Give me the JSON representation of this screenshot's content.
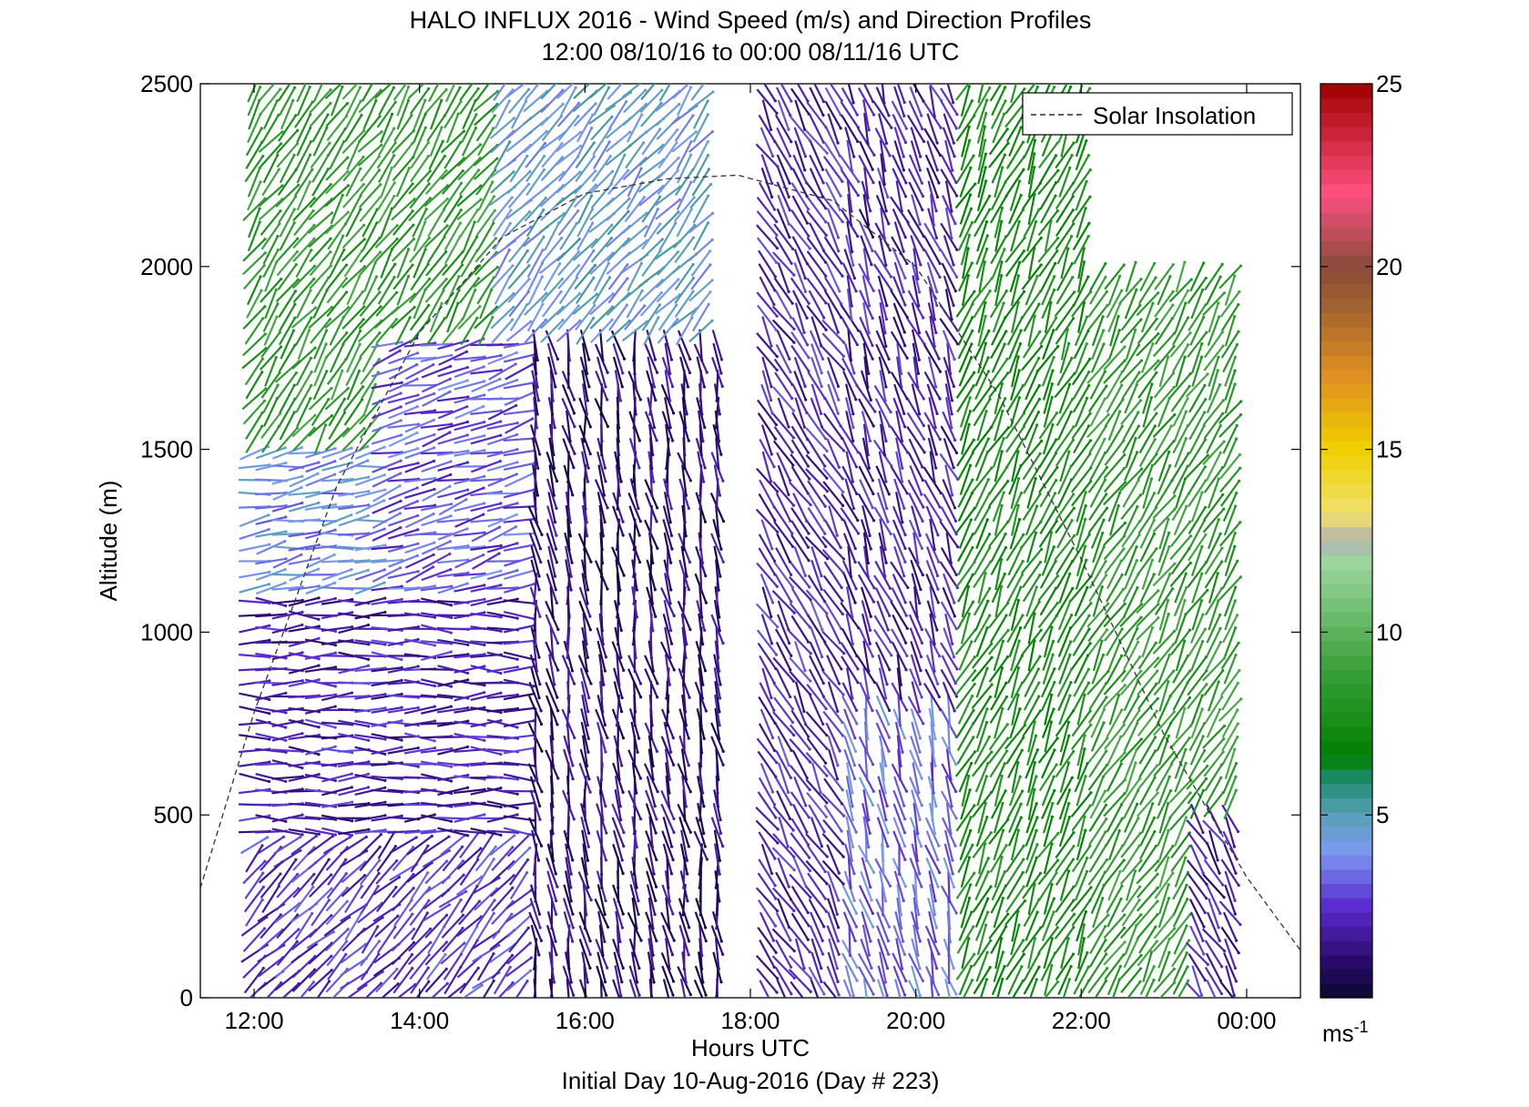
{
  "chart_data": {
    "type": "wind-barb-profile",
    "title": "HALO INFLUX 2016 - Wind Speed (m/s) and Direction Profiles",
    "subtitle": "12:00 08/10/16 to 00:00 08/11/16  UTC",
    "xlabel": "Hours UTC",
    "xlabel2": "Initial Day 10-Aug-2016 (Day # 223)",
    "ylabel": "Altitude (m)",
    "x_ticks": [
      "12:00",
      "14:00",
      "16:00",
      "18:00",
      "20:00",
      "22:00",
      "00:00"
    ],
    "x_tick_hours": [
      12,
      14,
      16,
      18,
      20,
      22,
      24
    ],
    "xlim_hours": [
      11.35,
      24.65
    ],
    "y_ticks": [
      "0",
      "500",
      "1000",
      "1500",
      "2000",
      "2500"
    ],
    "y_tick_values": [
      0,
      500,
      1000,
      1500,
      2000,
      2500
    ],
    "ylim": [
      0,
      2500
    ],
    "legend": {
      "entries": [
        "Solar Insolation"
      ],
      "location": "top-right"
    },
    "colorbar": {
      "ticks": [
        "5",
        "10",
        "15",
        "20",
        "25"
      ],
      "tick_values": [
        5,
        10,
        15,
        20,
        25
      ],
      "range": [
        0,
        25
      ],
      "unit": "ms",
      "unit_exp": "-1",
      "colors": [
        {
          "v": 0,
          "c": "#0a0a30"
        },
        {
          "v": 1,
          "c": "#2a0a6a"
        },
        {
          "v": 2.5,
          "c": "#5a2ad0"
        },
        {
          "v": 4,
          "c": "#7a9af0"
        },
        {
          "v": 5,
          "c": "#5aa0b8"
        },
        {
          "v": 6,
          "c": "#1a8a6a"
        },
        {
          "v": 6.6,
          "c": "#008000"
        },
        {
          "v": 9,
          "c": "#3aa03a"
        },
        {
          "v": 12,
          "c": "#a0d8a0"
        },
        {
          "v": 12.5,
          "c": "#b0b0b0"
        },
        {
          "v": 13.2,
          "c": "#f0e070"
        },
        {
          "v": 15,
          "c": "#f0d000"
        },
        {
          "v": 17,
          "c": "#e09020"
        },
        {
          "v": 19,
          "c": "#a06030"
        },
        {
          "v": 20,
          "c": "#8a4a3a"
        },
        {
          "v": 22,
          "c": "#ff5080"
        },
        {
          "v": 25,
          "c": "#a00000"
        }
      ]
    },
    "solar_insolation": {
      "description_curve": "dashed",
      "peak_hour": 17.85,
      "peak_altitude": 2250,
      "points": [
        {
          "h": 11.35,
          "alt": 300
        },
        {
          "h": 12,
          "alt": 780
        },
        {
          "h": 13,
          "alt": 1400
        },
        {
          "h": 14,
          "alt": 1820
        },
        {
          "h": 15,
          "alt": 2080
        },
        {
          "h": 16,
          "alt": 2200
        },
        {
          "h": 17,
          "alt": 2240
        },
        {
          "h": 17.85,
          "alt": 2250
        },
        {
          "h": 19,
          "alt": 2180
        },
        {
          "h": 20,
          "alt": 2000
        },
        {
          "h": 21,
          "alt": 1650
        },
        {
          "h": 22,
          "alt": 1200
        },
        {
          "h": 23,
          "alt": 720
        },
        {
          "h": 24,
          "alt": 330
        },
        {
          "h": 24.65,
          "alt": 130
        }
      ]
    },
    "wind_regions": [
      {
        "h0": 12.0,
        "h1": 14.8,
        "a0": 1500,
        "a1": 2500,
        "speed": 8.5,
        "dir_deg": 35
      },
      {
        "h0": 14.8,
        "h1": 17.4,
        "a0": 1800,
        "a1": 2500,
        "speed": 4.5,
        "dir_deg": 40
      },
      {
        "h0": 12.0,
        "h1": 13.5,
        "a0": 1100,
        "a1": 1500,
        "speed": 4.0,
        "dir_deg": 80
      },
      {
        "h0": 13.5,
        "h1": 15.3,
        "a0": 1100,
        "a1": 1800,
        "speed": 3.0,
        "dir_deg": 75
      },
      {
        "h0": 12.0,
        "h1": 15.3,
        "a0": 450,
        "a1": 1100,
        "speed": 2.0,
        "dir_deg": 90
      },
      {
        "h0": 12.0,
        "h1": 15.3,
        "a0": 0,
        "a1": 450,
        "speed": 2.5,
        "dir_deg": 45
      },
      {
        "h0": 15.3,
        "h1": 17.6,
        "a0": 0,
        "a1": 1800,
        "speed": 1.2,
        "dir_deg": 170
      },
      {
        "h0": 18.1,
        "h1": 19.0,
        "a0": 0,
        "a1": 2500,
        "speed": 2.2,
        "dir_deg": 150
      },
      {
        "h0": 19.0,
        "h1": 20.5,
        "a0": 800,
        "a1": 2500,
        "speed": 2.0,
        "dir_deg": 160
      },
      {
        "h0": 19.0,
        "h1": 20.5,
        "a0": 0,
        "a1": 800,
        "speed": 3.5,
        "dir_deg": 165
      },
      {
        "h0": 20.5,
        "h1": 22.0,
        "a0": 0,
        "a1": 2500,
        "speed": 7.5,
        "dir_deg": 25
      },
      {
        "h0": 22.0,
        "h1": 23.9,
        "a0": 0,
        "a1": 2000,
        "speed": 8.5,
        "dir_deg": 30
      },
      {
        "h0": 23.3,
        "h1": 23.9,
        "a0": 0,
        "a1": 500,
        "speed": 2.0,
        "dir_deg": 150
      }
    ],
    "profile_hours_step": 0.2,
    "profile_alt_step": 37,
    "gaps": [
      {
        "h0": 17.6,
        "h1": 18.1,
        "a0": 0,
        "a1": 2500
      }
    ]
  }
}
